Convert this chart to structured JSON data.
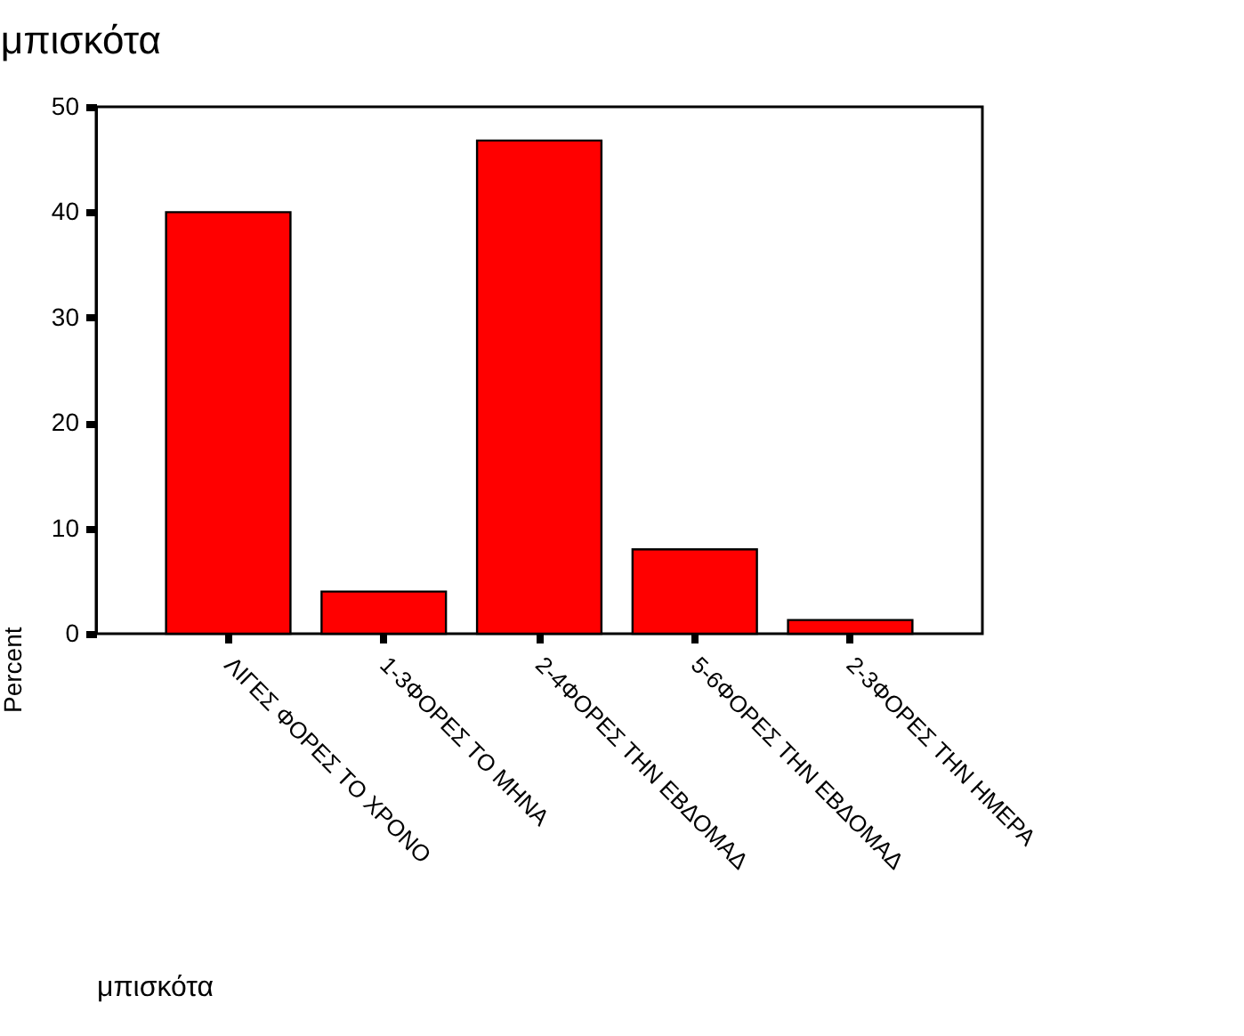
{
  "chart_data": {
    "type": "bar",
    "title": "μπισκότα",
    "xlabel": "μπισκότα",
    "ylabel": "Percent",
    "categories": [
      "ΛΙΓΕΣ ΦΟΡΕΣ ΤΟ ΧΡΟΝΟ",
      "1-3ΦΟΡΕΣ ΤΟ ΜΗΝΑ",
      "2-4ΦΟΡΕΣ ΤΗΝ ΕΒΔΟΜΑΔ",
      "5-6ΦΟΡΕΣ ΤΗΝ ΕΒΔΟΜΑΔ",
      "2-3ΦΟΡΕΣ ΤΗΝ ΗΜΕΡΑ"
    ],
    "values": [
      40,
      4,
      46.8,
      8,
      1.3
    ],
    "color": "#ff0000",
    "ylim": [
      0,
      50
    ],
    "yticks": [
      0,
      10,
      20,
      30,
      40,
      50
    ]
  }
}
